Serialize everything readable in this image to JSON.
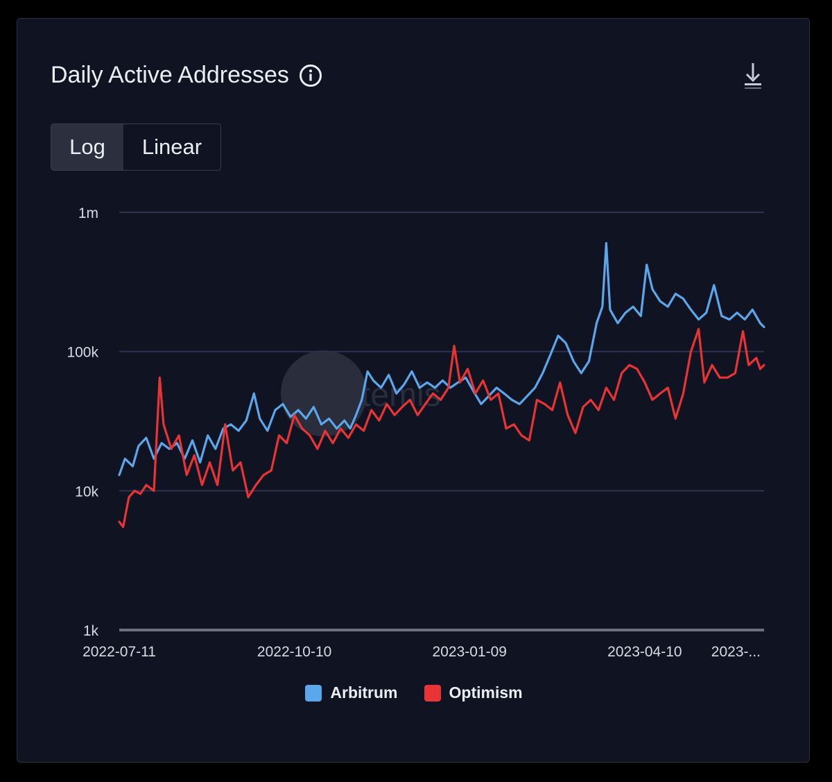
{
  "card": {
    "title": "Daily Active Addresses",
    "info_icon": "info-circle-icon",
    "download_icon": "download-icon"
  },
  "scale_toggle": {
    "options": [
      "Log",
      "Linear"
    ],
    "selected": "Log"
  },
  "watermark": "Artemis",
  "colors": {
    "background": "#101322",
    "grid": "#2e3350",
    "arbitrum": "#5aa7ec",
    "optimism": "#e83434"
  },
  "chart_data": {
    "type": "line",
    "title": "Daily Active Addresses",
    "x_type": "date",
    "x_range": [
      "2022-07-11",
      "2023-06-11"
    ],
    "x_ticks": [
      "2022-07-11",
      "2022-10-10",
      "2023-01-09",
      "2023-04-10",
      "2023-..."
    ],
    "y_scale": "log",
    "ylim": [
      1000,
      1000000
    ],
    "y_ticks": [
      1000,
      10000,
      100000,
      1000000
    ],
    "y_tick_labels": [
      "1k",
      "10k",
      "100k",
      "1m"
    ],
    "grid": true,
    "legend_position": "bottom",
    "series": [
      {
        "name": "Arbitrum",
        "color": "#5aa7ec",
        "points": [
          [
            "2022-07-11",
            13000
          ],
          [
            "2022-07-14",
            17000
          ],
          [
            "2022-07-18",
            15000
          ],
          [
            "2022-07-21",
            21000
          ],
          [
            "2022-07-25",
            24000
          ],
          [
            "2022-07-29",
            17000
          ],
          [
            "2022-08-02",
            22000
          ],
          [
            "2022-08-06",
            20000
          ],
          [
            "2022-08-10",
            22000
          ],
          [
            "2022-08-14",
            17000
          ],
          [
            "2022-08-18",
            23000
          ],
          [
            "2022-08-22",
            16000
          ],
          [
            "2022-08-26",
            25000
          ],
          [
            "2022-08-30",
            20000
          ],
          [
            "2022-09-03",
            28000
          ],
          [
            "2022-09-07",
            30000
          ],
          [
            "2022-09-11",
            27000
          ],
          [
            "2022-09-15",
            32000
          ],
          [
            "2022-09-19",
            50000
          ],
          [
            "2022-09-22",
            33000
          ],
          [
            "2022-09-26",
            27000
          ],
          [
            "2022-09-30",
            38000
          ],
          [
            "2022-10-04",
            42000
          ],
          [
            "2022-10-08",
            34000
          ],
          [
            "2022-10-12",
            38000
          ],
          [
            "2022-10-16",
            33000
          ],
          [
            "2022-10-20",
            40000
          ],
          [
            "2022-10-24",
            30000
          ],
          [
            "2022-10-28",
            33000
          ],
          [
            "2022-11-01",
            28000
          ],
          [
            "2022-11-05",
            32000
          ],
          [
            "2022-11-08",
            28000
          ],
          [
            "2022-11-11",
            35000
          ],
          [
            "2022-11-14",
            45000
          ],
          [
            "2022-11-17",
            72000
          ],
          [
            "2022-11-20",
            62000
          ],
          [
            "2022-11-24",
            55000
          ],
          [
            "2022-11-28",
            68000
          ],
          [
            "2022-12-02",
            50000
          ],
          [
            "2022-12-06",
            58000
          ],
          [
            "2022-12-10",
            72000
          ],
          [
            "2022-12-14",
            55000
          ],
          [
            "2022-12-18",
            60000
          ],
          [
            "2022-12-22",
            55000
          ],
          [
            "2022-12-26",
            62000
          ],
          [
            "2022-12-30",
            55000
          ],
          [
            "2023-01-03",
            60000
          ],
          [
            "2023-01-07",
            65000
          ],
          [
            "2023-01-11",
            52000
          ],
          [
            "2023-01-15",
            42000
          ],
          [
            "2023-01-19",
            48000
          ],
          [
            "2023-01-23",
            55000
          ],
          [
            "2023-01-27",
            50000
          ],
          [
            "2023-01-31",
            45000
          ],
          [
            "2023-02-04",
            42000
          ],
          [
            "2023-02-08",
            48000
          ],
          [
            "2023-02-12",
            55000
          ],
          [
            "2023-02-16",
            70000
          ],
          [
            "2023-02-20",
            95000
          ],
          [
            "2023-02-24",
            130000
          ],
          [
            "2023-02-28",
            115000
          ],
          [
            "2023-03-04",
            85000
          ],
          [
            "2023-03-08",
            70000
          ],
          [
            "2023-03-12",
            85000
          ],
          [
            "2023-03-16",
            160000
          ],
          [
            "2023-03-19",
            210000
          ],
          [
            "2023-03-21",
            600000
          ],
          [
            "2023-03-23",
            200000
          ],
          [
            "2023-03-27",
            160000
          ],
          [
            "2023-03-31",
            190000
          ],
          [
            "2023-04-04",
            210000
          ],
          [
            "2023-04-08",
            180000
          ],
          [
            "2023-04-11",
            420000
          ],
          [
            "2023-04-14",
            280000
          ],
          [
            "2023-04-18",
            230000
          ],
          [
            "2023-04-22",
            210000
          ],
          [
            "2023-04-26",
            260000
          ],
          [
            "2023-04-30",
            240000
          ],
          [
            "2023-05-04",
            200000
          ],
          [
            "2023-05-08",
            170000
          ],
          [
            "2023-05-12",
            190000
          ],
          [
            "2023-05-16",
            300000
          ],
          [
            "2023-05-20",
            180000
          ],
          [
            "2023-05-24",
            170000
          ],
          [
            "2023-05-28",
            190000
          ],
          [
            "2023-06-01",
            170000
          ],
          [
            "2023-06-05",
            200000
          ],
          [
            "2023-06-09",
            160000
          ],
          [
            "2023-06-11",
            150000
          ]
        ]
      },
      {
        "name": "Optimism",
        "color": "#e83434",
        "points": [
          [
            "2022-07-11",
            6000
          ],
          [
            "2022-07-13",
            5500
          ],
          [
            "2022-07-16",
            9000
          ],
          [
            "2022-07-19",
            10000
          ],
          [
            "2022-07-22",
            9500
          ],
          [
            "2022-07-25",
            11000
          ],
          [
            "2022-07-29",
            10000
          ],
          [
            "2022-08-01",
            65000
          ],
          [
            "2022-08-03",
            30000
          ],
          [
            "2022-08-07",
            20000
          ],
          [
            "2022-08-11",
            25000
          ],
          [
            "2022-08-15",
            13000
          ],
          [
            "2022-08-19",
            18000
          ],
          [
            "2022-08-23",
            11000
          ],
          [
            "2022-08-27",
            16000
          ],
          [
            "2022-08-31",
            11000
          ],
          [
            "2022-09-04",
            30000
          ],
          [
            "2022-09-08",
            14000
          ],
          [
            "2022-09-12",
            16000
          ],
          [
            "2022-09-16",
            9000
          ],
          [
            "2022-09-20",
            11000
          ],
          [
            "2022-09-24",
            13000
          ],
          [
            "2022-09-28",
            14000
          ],
          [
            "2022-10-02",
            25000
          ],
          [
            "2022-10-06",
            22000
          ],
          [
            "2022-10-10",
            35000
          ],
          [
            "2022-10-14",
            28000
          ],
          [
            "2022-10-18",
            25000
          ],
          [
            "2022-10-22",
            20000
          ],
          [
            "2022-10-26",
            27000
          ],
          [
            "2022-10-30",
            22000
          ],
          [
            "2022-11-03",
            28000
          ],
          [
            "2022-11-07",
            24000
          ],
          [
            "2022-11-11",
            30000
          ],
          [
            "2022-11-15",
            27000
          ],
          [
            "2022-11-19",
            38000
          ],
          [
            "2022-11-23",
            32000
          ],
          [
            "2022-11-27",
            42000
          ],
          [
            "2022-12-01",
            35000
          ],
          [
            "2022-12-05",
            40000
          ],
          [
            "2022-12-09",
            45000
          ],
          [
            "2022-12-13",
            35000
          ],
          [
            "2022-12-17",
            42000
          ],
          [
            "2022-12-21",
            50000
          ],
          [
            "2022-12-25",
            45000
          ],
          [
            "2022-12-29",
            55000
          ],
          [
            "2023-01-01",
            110000
          ],
          [
            "2023-01-04",
            60000
          ],
          [
            "2023-01-08",
            75000
          ],
          [
            "2023-01-12",
            50000
          ],
          [
            "2023-01-16",
            62000
          ],
          [
            "2023-01-20",
            45000
          ],
          [
            "2023-01-24",
            50000
          ],
          [
            "2023-01-28",
            28000
          ],
          [
            "2023-02-01",
            30000
          ],
          [
            "2023-02-05",
            25000
          ],
          [
            "2023-02-09",
            23000
          ],
          [
            "2023-02-13",
            45000
          ],
          [
            "2023-02-17",
            42000
          ],
          [
            "2023-02-21",
            38000
          ],
          [
            "2023-02-25",
            60000
          ],
          [
            "2023-03-01",
            35000
          ],
          [
            "2023-03-05",
            26000
          ],
          [
            "2023-03-09",
            40000
          ],
          [
            "2023-03-13",
            45000
          ],
          [
            "2023-03-17",
            38000
          ],
          [
            "2023-03-21",
            55000
          ],
          [
            "2023-03-25",
            45000
          ],
          [
            "2023-03-29",
            70000
          ],
          [
            "2023-04-02",
            80000
          ],
          [
            "2023-04-06",
            75000
          ],
          [
            "2023-04-10",
            60000
          ],
          [
            "2023-04-14",
            45000
          ],
          [
            "2023-04-18",
            50000
          ],
          [
            "2023-04-22",
            55000
          ],
          [
            "2023-04-26",
            33000
          ],
          [
            "2023-04-30",
            50000
          ],
          [
            "2023-05-04",
            100000
          ],
          [
            "2023-05-08",
            145000
          ],
          [
            "2023-05-11",
            60000
          ],
          [
            "2023-05-15",
            80000
          ],
          [
            "2023-05-19",
            65000
          ],
          [
            "2023-05-23",
            65000
          ],
          [
            "2023-05-27",
            70000
          ],
          [
            "2023-05-31",
            140000
          ],
          [
            "2023-06-03",
            80000
          ],
          [
            "2023-06-07",
            90000
          ],
          [
            "2023-06-09",
            75000
          ],
          [
            "2023-06-11",
            80000
          ]
        ]
      }
    ]
  }
}
